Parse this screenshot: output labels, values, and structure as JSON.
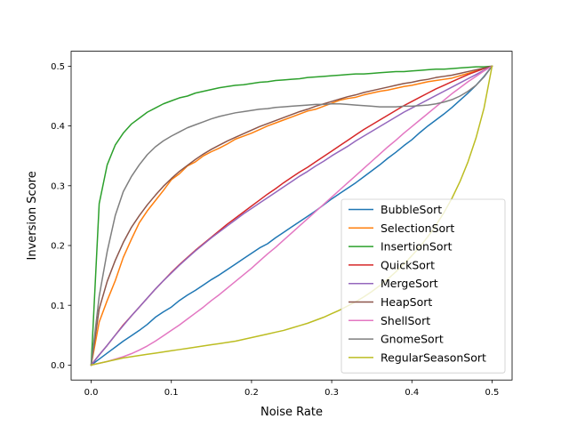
{
  "chart_data": {
    "type": "line",
    "title": "",
    "xlabel": "Noise Rate",
    "ylabel": "Inversion Score",
    "xlim": [
      -0.025,
      0.525
    ],
    "ylim": [
      -0.025,
      0.525
    ],
    "xticks": [
      0.0,
      0.1,
      0.2,
      0.3,
      0.4,
      0.5
    ],
    "xtick_labels": [
      "0.0",
      "0.1",
      "0.2",
      "0.3",
      "0.4",
      "0.5"
    ],
    "yticks": [
      0.0,
      0.1,
      0.2,
      0.3,
      0.4,
      0.5
    ],
    "ytick_labels": [
      "0.0",
      "0.1",
      "0.2",
      "0.3",
      "0.4",
      "0.5"
    ],
    "grid": false,
    "legend_position": "lower-right",
    "x": [
      0.0,
      0.01,
      0.02,
      0.03,
      0.04,
      0.05,
      0.06,
      0.07,
      0.08,
      0.09,
      0.1,
      0.11,
      0.12,
      0.13,
      0.14,
      0.15,
      0.16,
      0.17,
      0.18,
      0.19,
      0.2,
      0.21,
      0.22,
      0.23,
      0.24,
      0.25,
      0.26,
      0.27,
      0.28,
      0.29,
      0.3,
      0.31,
      0.32,
      0.33,
      0.34,
      0.35,
      0.36,
      0.37,
      0.38,
      0.39,
      0.4,
      0.41,
      0.42,
      0.43,
      0.44,
      0.45,
      0.46,
      0.47,
      0.48,
      0.49,
      0.5
    ],
    "series": [
      {
        "name": "BubbleSort",
        "color": "#1f77b4",
        "values": [
          0.0,
          0.01,
          0.02,
          0.03,
          0.04,
          0.049,
          0.058,
          0.068,
          0.08,
          0.089,
          0.097,
          0.108,
          0.117,
          0.125,
          0.134,
          0.143,
          0.151,
          0.16,
          0.169,
          0.178,
          0.187,
          0.196,
          0.203,
          0.213,
          0.222,
          0.231,
          0.24,
          0.249,
          0.258,
          0.268,
          0.278,
          0.287,
          0.296,
          0.305,
          0.315,
          0.325,
          0.335,
          0.346,
          0.356,
          0.367,
          0.377,
          0.389,
          0.4,
          0.41,
          0.42,
          0.431,
          0.443,
          0.455,
          0.468,
          0.483,
          0.5
        ]
      },
      {
        "name": "SelectionSort",
        "color": "#ff7f0e",
        "values": [
          0.0,
          0.072,
          0.108,
          0.141,
          0.18,
          0.21,
          0.238,
          0.258,
          0.275,
          0.292,
          0.31,
          0.32,
          0.333,
          0.34,
          0.35,
          0.357,
          0.363,
          0.37,
          0.378,
          0.383,
          0.388,
          0.394,
          0.4,
          0.405,
          0.41,
          0.415,
          0.42,
          0.425,
          0.428,
          0.433,
          0.438,
          0.443,
          0.446,
          0.448,
          0.452,
          0.455,
          0.458,
          0.46,
          0.463,
          0.466,
          0.468,
          0.471,
          0.474,
          0.476,
          0.478,
          0.48,
          0.484,
          0.488,
          0.492,
          0.496,
          0.5
        ]
      },
      {
        "name": "InsertionSort",
        "color": "#2ca02c",
        "values": [
          0.0,
          0.27,
          0.335,
          0.368,
          0.388,
          0.403,
          0.413,
          0.423,
          0.43,
          0.437,
          0.442,
          0.447,
          0.45,
          0.455,
          0.458,
          0.461,
          0.464,
          0.466,
          0.468,
          0.469,
          0.471,
          0.473,
          0.474,
          0.476,
          0.477,
          0.478,
          0.479,
          0.481,
          0.482,
          0.483,
          0.484,
          0.485,
          0.486,
          0.487,
          0.487,
          0.488,
          0.489,
          0.49,
          0.491,
          0.491,
          0.492,
          0.493,
          0.494,
          0.495,
          0.495,
          0.496,
          0.497,
          0.498,
          0.499,
          0.499,
          0.5
        ]
      },
      {
        "name": "QuickSort",
        "color": "#d62728",
        "values": [
          0.0,
          0.017,
          0.033,
          0.05,
          0.067,
          0.082,
          0.097,
          0.112,
          0.127,
          0.141,
          0.155,
          0.168,
          0.18,
          0.192,
          0.203,
          0.214,
          0.225,
          0.236,
          0.246,
          0.256,
          0.266,
          0.276,
          0.286,
          0.295,
          0.305,
          0.314,
          0.323,
          0.331,
          0.34,
          0.349,
          0.358,
          0.367,
          0.376,
          0.385,
          0.394,
          0.402,
          0.41,
          0.418,
          0.426,
          0.434,
          0.441,
          0.448,
          0.455,
          0.462,
          0.468,
          0.474,
          0.48,
          0.486,
          0.491,
          0.496,
          0.5
        ]
      },
      {
        "name": "MergeSort",
        "color": "#9467bd",
        "values": [
          0.0,
          0.017,
          0.033,
          0.05,
          0.066,
          0.082,
          0.097,
          0.112,
          0.127,
          0.141,
          0.154,
          0.167,
          0.179,
          0.191,
          0.202,
          0.213,
          0.223,
          0.233,
          0.243,
          0.253,
          0.262,
          0.271,
          0.28,
          0.289,
          0.298,
          0.307,
          0.316,
          0.324,
          0.333,
          0.341,
          0.35,
          0.358,
          0.366,
          0.375,
          0.383,
          0.391,
          0.399,
          0.407,
          0.415,
          0.423,
          0.43,
          0.437,
          0.444,
          0.451,
          0.458,
          0.465,
          0.472,
          0.479,
          0.486,
          0.493,
          0.5
        ]
      },
      {
        "name": "HeapSort",
        "color": "#8c564b",
        "values": [
          0.0,
          0.094,
          0.14,
          0.175,
          0.205,
          0.23,
          0.25,
          0.268,
          0.284,
          0.299,
          0.312,
          0.324,
          0.334,
          0.344,
          0.353,
          0.361,
          0.368,
          0.375,
          0.381,
          0.387,
          0.393,
          0.399,
          0.404,
          0.409,
          0.414,
          0.419,
          0.424,
          0.428,
          0.433,
          0.437,
          0.441,
          0.445,
          0.449,
          0.452,
          0.456,
          0.459,
          0.462,
          0.465,
          0.468,
          0.471,
          0.473,
          0.476,
          0.478,
          0.481,
          0.483,
          0.485,
          0.488,
          0.491,
          0.494,
          0.497,
          0.5
        ]
      },
      {
        "name": "ShellSort",
        "color": "#e377c2",
        "values": [
          0.0,
          0.003,
          0.006,
          0.01,
          0.014,
          0.019,
          0.025,
          0.032,
          0.04,
          0.049,
          0.058,
          0.067,
          0.077,
          0.087,
          0.097,
          0.108,
          0.118,
          0.129,
          0.14,
          0.151,
          0.162,
          0.174,
          0.186,
          0.197,
          0.209,
          0.221,
          0.233,
          0.245,
          0.257,
          0.269,
          0.281,
          0.293,
          0.305,
          0.317,
          0.329,
          0.341,
          0.353,
          0.365,
          0.376,
          0.388,
          0.399,
          0.41,
          0.421,
          0.432,
          0.443,
          0.454,
          0.464,
          0.474,
          0.483,
          0.492,
          0.5
        ]
      },
      {
        "name": "GnomeSort",
        "color": "#7f7f7f",
        "values": [
          0.0,
          0.115,
          0.19,
          0.25,
          0.29,
          0.315,
          0.335,
          0.352,
          0.365,
          0.375,
          0.383,
          0.39,
          0.397,
          0.402,
          0.407,
          0.412,
          0.416,
          0.419,
          0.422,
          0.424,
          0.426,
          0.428,
          0.429,
          0.431,
          0.432,
          0.433,
          0.434,
          0.435,
          0.436,
          0.436,
          0.437,
          0.437,
          0.436,
          0.435,
          0.434,
          0.433,
          0.432,
          0.432,
          0.432,
          0.433,
          0.433,
          0.434,
          0.435,
          0.437,
          0.44,
          0.444,
          0.45,
          0.458,
          0.468,
          0.482,
          0.5
        ]
      },
      {
        "name": "RegularSeasonSort",
        "color": "#bcbd22",
        "values": [
          0.0,
          0.003,
          0.006,
          0.009,
          0.012,
          0.014,
          0.016,
          0.018,
          0.02,
          0.022,
          0.024,
          0.026,
          0.028,
          0.03,
          0.032,
          0.034,
          0.036,
          0.038,
          0.04,
          0.043,
          0.046,
          0.049,
          0.052,
          0.055,
          0.058,
          0.062,
          0.066,
          0.07,
          0.075,
          0.08,
          0.086,
          0.092,
          0.099,
          0.106,
          0.114,
          0.123,
          0.133,
          0.144,
          0.156,
          0.169,
          0.183,
          0.198,
          0.215,
          0.234,
          0.255,
          0.279,
          0.307,
          0.34,
          0.38,
          0.43,
          0.5
        ]
      }
    ]
  }
}
